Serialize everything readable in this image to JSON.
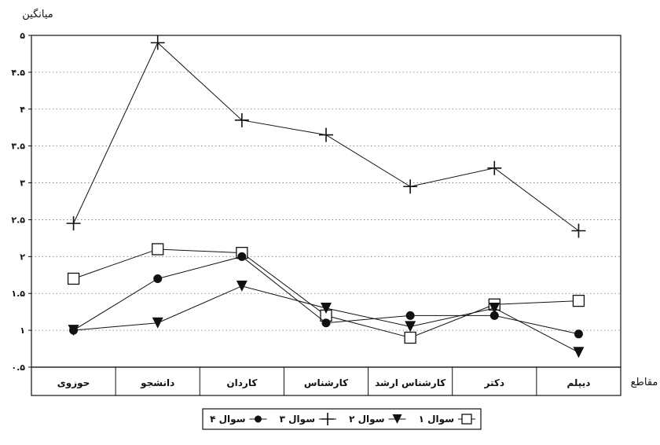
{
  "chart_data": {
    "type": "line",
    "ylabel": "میانگین",
    "xlabel": "مقاطع",
    "ylim": [
      0.5,
      5
    ],
    "y_ticks": [
      0.5,
      1,
      1.5,
      2,
      2.5,
      3,
      3.5,
      4,
      4.5,
      5
    ],
    "y_tick_labels": [
      "۰.۵",
      "۱",
      "۱.۵",
      "۲",
      "۲.۵",
      "۳",
      "۳.۵",
      "۴",
      "۴.۵",
      "۵"
    ],
    "grid": "horizontal-dotted",
    "categories": [
      "دیپلم",
      "دکتر",
      "کارشناس ارشد",
      "کارشناس",
      "کاردان",
      "دانشجو",
      "حوزوی"
    ],
    "series": [
      {
        "name": "سوال ۱",
        "marker": "square",
        "values": [
          1.4,
          1.35,
          0.9,
          1.2,
          2.05,
          2.1,
          1.7
        ]
      },
      {
        "name": "سوال ۲",
        "marker": "triangle-down",
        "values": [
          0.7,
          1.3,
          1.05,
          1.3,
          1.6,
          1.1,
          1.0
        ]
      },
      {
        "name": "سوال ۳",
        "marker": "plus",
        "values": [
          2.35,
          3.2,
          2.95,
          3.65,
          3.85,
          4.9,
          2.45
        ]
      },
      {
        "name": "سوال ۴",
        "marker": "circle",
        "values": [
          0.95,
          1.2,
          1.2,
          1.1,
          2.0,
          1.7,
          1.0
        ]
      }
    ],
    "legend_position": "bottom-center"
  }
}
